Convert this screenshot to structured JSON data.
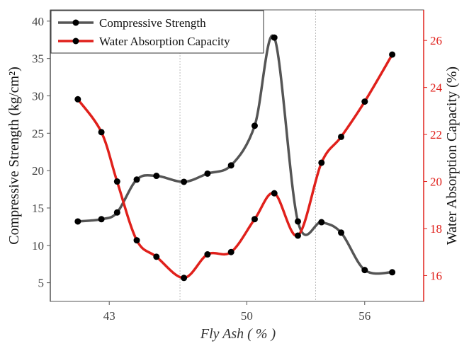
{
  "chart_data": {
    "type": "line",
    "xlabel": "Fly Ash ( % )",
    "ylabel_left": "Compressive Strength (kg/cm²)",
    "ylabel_right": "Water Absorption Capacity (%)",
    "x_ticks": [
      43,
      50,
      56
    ],
    "y_left_ticks": [
      5,
      10,
      15,
      20,
      25,
      30,
      35,
      40
    ],
    "y_right_ticks": [
      16,
      18,
      20,
      22,
      24,
      26
    ],
    "xlim": [
      40,
      59
    ],
    "y_left_lim": [
      2.5,
      41.5
    ],
    "y_right_lim": [
      14.9,
      27.3
    ],
    "reference_lines_x": [
      46.6,
      53.5
    ],
    "legend_position": "top-left",
    "series": [
      {
        "name": "Compressive Strength",
        "axis": "left",
        "color": "#555555",
        "x": [
          41.4,
          42.6,
          43.4,
          44.4,
          45.4,
          46.8,
          48.0,
          49.2,
          50.4,
          51.4,
          52.6,
          53.8,
          54.8,
          56.0,
          57.4
        ],
        "y": [
          13.2,
          13.5,
          14.4,
          18.8,
          19.3,
          18.5,
          19.6,
          20.7,
          26.0,
          37.8,
          13.2,
          13.1,
          11.7,
          6.7,
          6.4
        ]
      },
      {
        "name": "Water Absorption Capacity",
        "axis": "right",
        "color": "#e0201b",
        "x": [
          41.4,
          42.6,
          43.4,
          44.4,
          45.4,
          46.8,
          48.0,
          49.2,
          50.4,
          51.4,
          52.6,
          53.8,
          54.8,
          56.0,
          57.4
        ],
        "y": [
          23.5,
          22.1,
          20.0,
          17.5,
          16.8,
          15.9,
          16.9,
          17.0,
          18.4,
          19.5,
          17.7,
          20.8,
          21.9,
          23.4,
          25.4
        ]
      }
    ]
  },
  "colors": {
    "left_axis": "#444444",
    "right_axis": "#e0201b",
    "marker": "#000000"
  }
}
